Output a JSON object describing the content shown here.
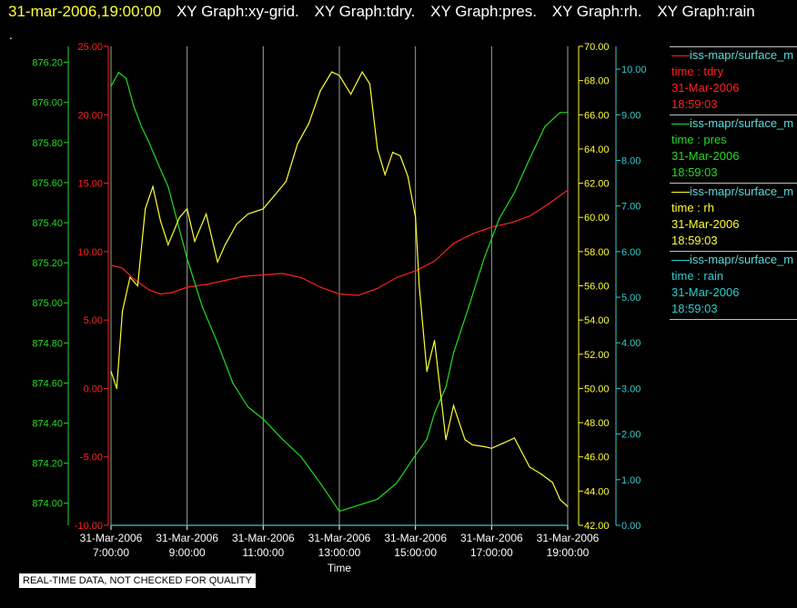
{
  "header": {
    "timestamp": "31-mar-2006,19:00:00",
    "graphs": [
      "XY Graph:xy-grid.",
      "XY Graph:tdry.",
      "XY Graph:pres.",
      "XY Graph:rh.",
      "XY Graph:rain"
    ]
  },
  "marker": ".",
  "footer_note": "REAL-TIME DATA, NOT CHECKED FOR QUALITY",
  "colors": {
    "tdry": "#ff2020",
    "pres": "#22dd22",
    "rh": "#ffff33",
    "rain": "#33cccc",
    "grid": "#a0a0a0"
  },
  "legend": [
    {
      "source": "iss-mapr/surface_m",
      "var": "time : tdry",
      "date": "31-Mar-2006",
      "time": "18:59:03",
      "color": "#ff2020"
    },
    {
      "source": "iss-mapr/surface_m",
      "var": "time : pres",
      "date": "31-Mar-2006",
      "time": "18:59:03",
      "color": "#22dd22"
    },
    {
      "source": "iss-mapr/surface_m",
      "var": "time : rh",
      "date": "31-Mar-2006",
      "time": "18:59:03",
      "color": "#ffff33"
    },
    {
      "source": "iss-mapr/surface_m",
      "var": "time : rain",
      "date": "31-Mar-2006",
      "time": "18:59:03",
      "color": "#33cccc"
    }
  ],
  "chart_data": {
    "type": "line",
    "xlabel": "Time",
    "x_ticks": [
      {
        "t": 7,
        "date": "31-Mar-2006",
        "time": "7:00:00"
      },
      {
        "t": 9,
        "date": "31-Mar-2006",
        "time": "9:00:00"
      },
      {
        "t": 11,
        "date": "31-Mar-2006",
        "time": "11:00:00"
      },
      {
        "t": 13,
        "date": "31-Mar-2006",
        "time": "13:00:00"
      },
      {
        "t": 15,
        "date": "31-Mar-2006",
        "time": "15:00:00"
      },
      {
        "t": 17,
        "date": "31-Mar-2006",
        "time": "17:00:00"
      },
      {
        "t": 19,
        "date": "31-Mar-2006",
        "time": "19:00:00"
      }
    ],
    "xlim": [
      7,
      19
    ],
    "grid": "vertical",
    "axes": {
      "pres": {
        "side": "left-outer",
        "ylim": [
          873.89,
          876.28
        ],
        "ticks": [
          "874.00",
          "874.20",
          "874.40",
          "874.60",
          "874.80",
          "875.00",
          "875.20",
          "875.40",
          "875.60",
          "875.80",
          "876.00",
          "876.20"
        ]
      },
      "tdry": {
        "side": "left-inner",
        "ylim": [
          -10,
          25
        ],
        "ticks": [
          "-10.00",
          "-5.00",
          "0.00",
          "5.00",
          "10.00",
          "15.00",
          "20.00",
          "25.00"
        ]
      },
      "rh": {
        "side": "right-inner",
        "ylim": [
          42,
          70
        ],
        "ticks": [
          "42.00",
          "44.00",
          "46.00",
          "48.00",
          "50.00",
          "52.00",
          "54.00",
          "56.00",
          "58.00",
          "60.00",
          "62.00",
          "64.00",
          "66.00",
          "68.00",
          "70.00"
        ]
      },
      "rain": {
        "side": "right-outer",
        "ylim": [
          0,
          10.5
        ],
        "ticks": [
          "0.00",
          "1.00",
          "2.00",
          "3.00",
          "4.00",
          "5.00",
          "6.00",
          "7.00",
          "8.00",
          "9.00",
          "10.00"
        ]
      }
    },
    "series": [
      {
        "name": "tdry",
        "axis": "tdry",
        "color": "#ff2020",
        "x": [
          7.0,
          7.3,
          7.6,
          8.0,
          8.3,
          8.6,
          9.0,
          9.5,
          10.0,
          10.5,
          11.0,
          11.5,
          12.0,
          12.5,
          13.0,
          13.5,
          14.0,
          14.5,
          15.0,
          15.5,
          16.0,
          16.5,
          17.0,
          17.5,
          18.0,
          18.5,
          19.0
        ],
        "y": [
          9.0,
          8.8,
          8.0,
          7.2,
          6.9,
          7.0,
          7.4,
          7.6,
          7.9,
          8.2,
          8.3,
          8.4,
          8.1,
          7.4,
          6.9,
          6.8,
          7.3,
          8.1,
          8.6,
          9.3,
          10.6,
          11.3,
          11.8,
          12.1,
          12.6,
          13.5,
          14.5
        ]
      },
      {
        "name": "pres",
        "axis": "pres",
        "color": "#22dd22",
        "x": [
          7.0,
          7.2,
          7.4,
          7.6,
          7.8,
          8.0,
          8.2,
          8.5,
          9.0,
          9.4,
          9.8,
          10.2,
          10.6,
          11.0,
          11.5,
          12.0,
          12.5,
          13.0,
          13.5,
          14.0,
          14.5,
          15.0,
          15.3,
          15.5,
          15.8,
          16.0,
          16.4,
          16.8,
          17.2,
          17.6,
          18.0,
          18.4,
          18.8,
          19.0
        ],
        "y": [
          876.08,
          876.15,
          876.12,
          875.98,
          875.88,
          875.8,
          875.71,
          875.58,
          875.22,
          874.98,
          874.8,
          874.6,
          874.48,
          874.42,
          874.32,
          874.23,
          874.1,
          873.96,
          873.99,
          874.02,
          874.1,
          874.24,
          874.32,
          874.45,
          874.58,
          874.75,
          874.98,
          875.22,
          875.42,
          875.55,
          875.72,
          875.88,
          875.95,
          875.95
        ]
      },
      {
        "name": "rh",
        "axis": "rh",
        "color": "#ffff33",
        "x": [
          7.0,
          7.15,
          7.3,
          7.5,
          7.7,
          7.9,
          8.1,
          8.3,
          8.5,
          8.8,
          9.0,
          9.2,
          9.5,
          9.8,
          10.0,
          10.3,
          10.6,
          11.0,
          11.3,
          11.6,
          11.9,
          12.2,
          12.5,
          12.8,
          13.0,
          13.3,
          13.6,
          13.8,
          14.0,
          14.2,
          14.4,
          14.6,
          14.8,
          15.0,
          15.1,
          15.2,
          15.3,
          15.5,
          15.8,
          16.0,
          16.3,
          16.5,
          16.8,
          17.0,
          17.3,
          17.6,
          18.0,
          18.3,
          18.6,
          18.8,
          19.0
        ],
        "y": [
          51.0,
          50.0,
          54.5,
          56.5,
          56.0,
          60.5,
          61.8,
          59.8,
          58.4,
          60.0,
          60.5,
          58.6,
          60.2,
          57.4,
          58.4,
          59.6,
          60.2,
          60.5,
          61.3,
          62.1,
          64.3,
          65.5,
          67.4,
          68.5,
          68.3,
          67.2,
          68.5,
          67.8,
          64.0,
          62.5,
          63.8,
          63.6,
          62.4,
          60.0,
          56.0,
          53.5,
          51.0,
          52.8,
          47.0,
          49.0,
          47.0,
          46.7,
          46.6,
          46.5,
          46.8,
          47.1,
          45.4,
          45.0,
          44.5,
          43.5,
          43.1
        ]
      },
      {
        "name": "rain",
        "axis": "rain",
        "color": "#33cccc",
        "x": [
          7.0,
          19.0
        ],
        "y": [
          0.0,
          0.0
        ]
      }
    ]
  }
}
